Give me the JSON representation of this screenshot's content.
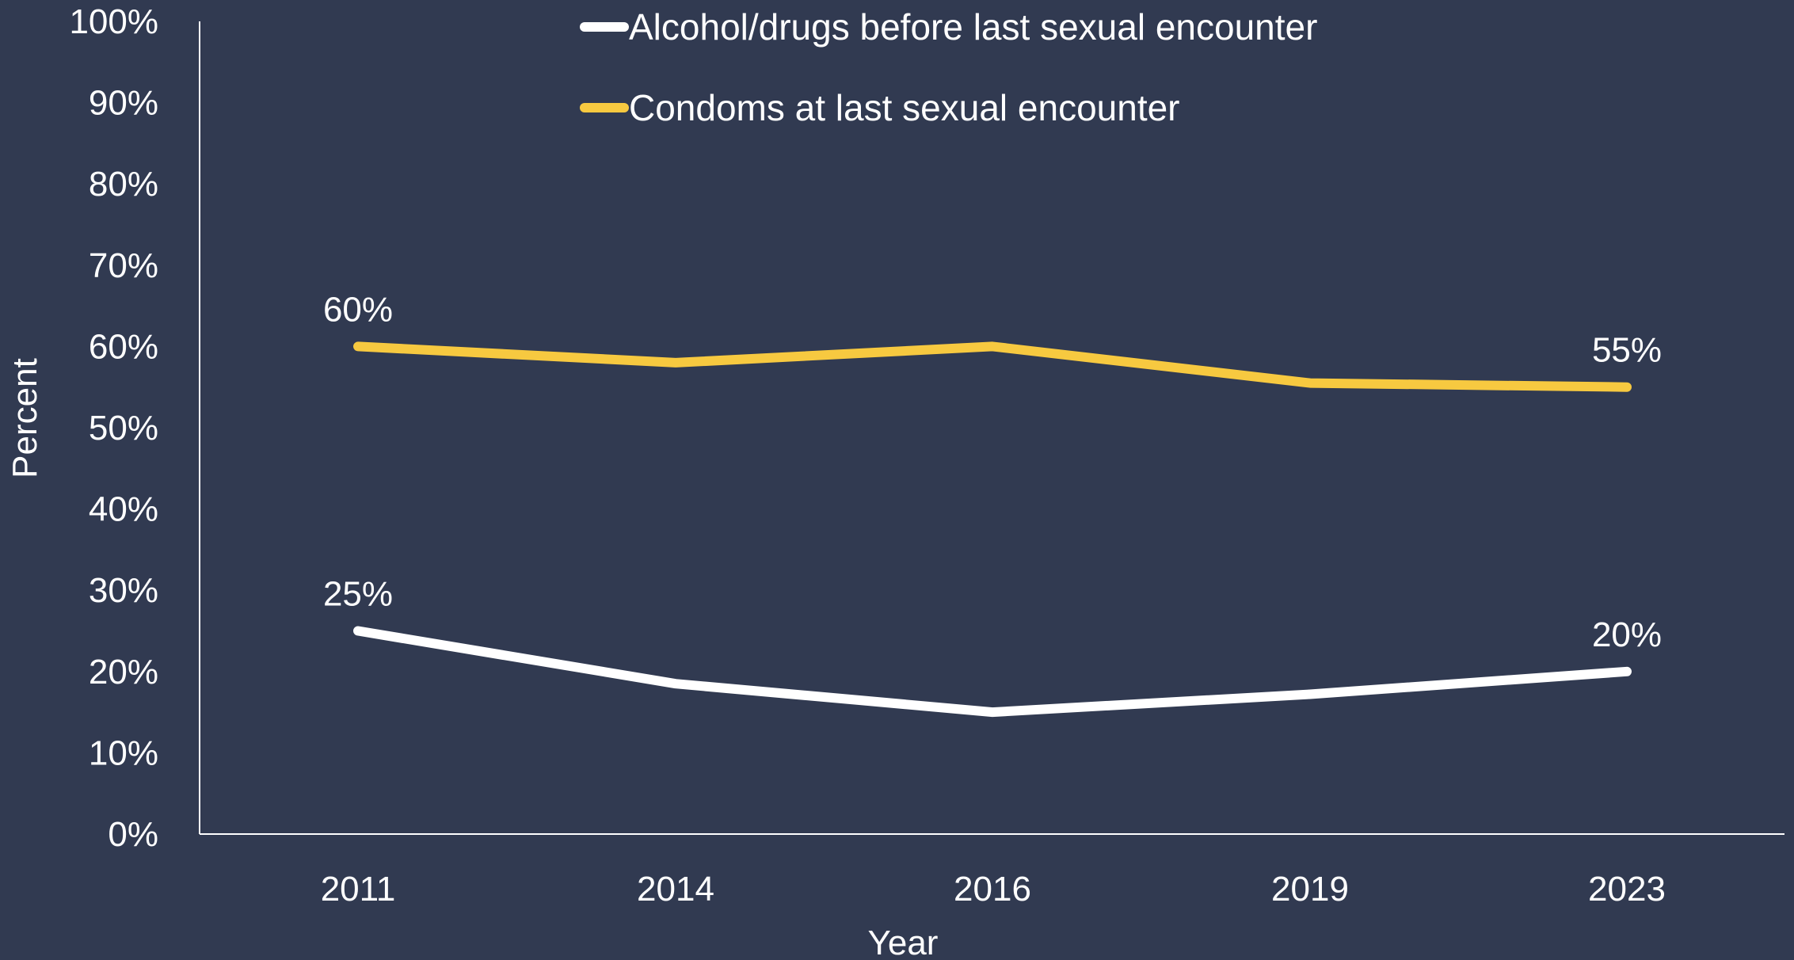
{
  "colors": {
    "background": "#313a51",
    "axis": "#ffffff",
    "text": "#ffffff"
  },
  "chart_data": {
    "type": "line",
    "title": "",
    "xlabel": "Year",
    "ylabel": "Percent",
    "categories": [
      "2011",
      "2014",
      "2016",
      "2019",
      "2023"
    ],
    "ylim": [
      0,
      100
    ],
    "y_ticks": [
      0,
      10,
      20,
      30,
      40,
      50,
      60,
      70,
      80,
      90,
      100
    ],
    "y_tick_labels": [
      "0%",
      "10%",
      "20%",
      "30%",
      "40%",
      "50%",
      "60%",
      "70%",
      "80%",
      "90%",
      "100%"
    ],
    "grid": false,
    "legend_position": "top-center",
    "series": [
      {
        "name": "Alcohol/drugs before last sexual encounter",
        "color": "#ffffff",
        "values": [
          25,
          18.5,
          15,
          17.2,
          20
        ],
        "data_labels": [
          {
            "index": 0,
            "text": "25%"
          },
          {
            "index": 4,
            "text": "20%"
          }
        ]
      },
      {
        "name": "Condoms at last sexual encounter",
        "color": "#f7c940",
        "values": [
          60,
          58,
          60,
          55.5,
          55
        ],
        "data_labels": [
          {
            "index": 0,
            "text": "60%"
          },
          {
            "index": 4,
            "text": "55%"
          }
        ]
      }
    ]
  }
}
